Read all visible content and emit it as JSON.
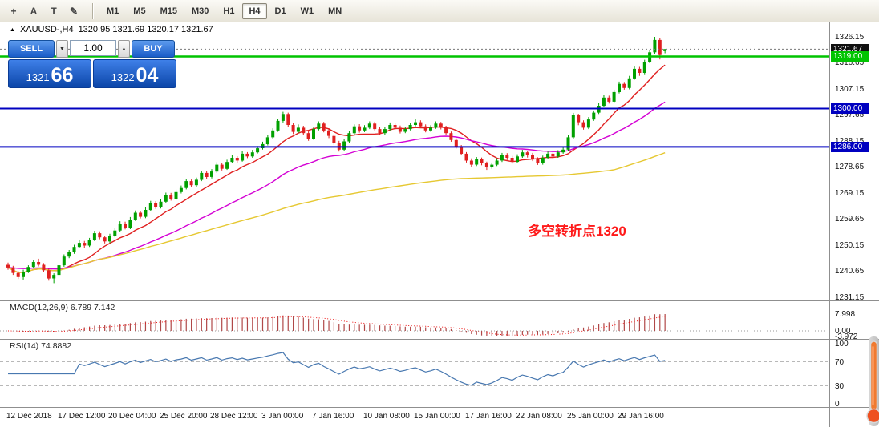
{
  "toolbar": {
    "icons": [
      {
        "name": "crosshair-icon",
        "glyph": "+"
      },
      {
        "name": "annotate-a-icon",
        "glyph": "A"
      },
      {
        "name": "text-tool-icon",
        "glyph": "T"
      },
      {
        "name": "draw-pencil-icon",
        "glyph": "✎"
      }
    ],
    "timeframes": [
      "M1",
      "M5",
      "M15",
      "M30",
      "H1",
      "H4",
      "D1",
      "W1",
      "MN"
    ],
    "active_timeframe": "H4"
  },
  "chart": {
    "header_icon": "▲",
    "symbol": "XAUUSD-,H4",
    "ohlc_text": "1320.95 1321.69 1320.17 1321.67"
  },
  "trade_panel": {
    "sell_label": "SELL",
    "buy_label": "BUY",
    "lot_value": "1.00",
    "spin_down": "▼",
    "spin_up": "▲",
    "sell_price": {
      "small": "1321",
      "big": "66"
    },
    "buy_price": {
      "small": "1322",
      "big": "04"
    }
  },
  "annotation": {
    "text": "多空转折点1320",
    "color": "#ff1a1a"
  },
  "levels": [
    {
      "label": "1321.67",
      "price": 1321.67,
      "color": "#111111",
      "type": "bid"
    },
    {
      "label": "1319.00",
      "price": 1319.0,
      "color": "#00c400",
      "type": "hline"
    },
    {
      "label": "1300.00",
      "price": 1300.0,
      "color": "#0000c0",
      "type": "hline"
    },
    {
      "label": "1286.00",
      "price": 1286.0,
      "color": "#0000c0",
      "type": "hline"
    }
  ],
  "price_axis": {
    "ticks": [
      "1326.15",
      "1316.65",
      "1307.15",
      "1297.65",
      "1288.15",
      "1278.65",
      "1269.15",
      "1259.65",
      "1250.15",
      "1240.65",
      "1231.15"
    ]
  },
  "indicators": {
    "macd": {
      "header": "MACD(12,26,9) 6.789 7.142",
      "params": {
        "fast": 12,
        "slow": 26,
        "signal": 9
      },
      "current_main": 6.789,
      "current_signal": 7.142,
      "axis": [
        "7.998",
        "0.00",
        "-3.972"
      ],
      "histogram_color": "#b04848",
      "signal_color": "#ee1111"
    },
    "rsi": {
      "header": "RSI(14) 74.8882",
      "period": 14,
      "current": 74.8882,
      "axis": [
        "100",
        "70",
        "30",
        "0"
      ],
      "level_lines": [
        70,
        30
      ],
      "color": "#4878b0"
    }
  },
  "chart_data": {
    "type": "candlestick",
    "symbol": "XAUUSD-",
    "timeframe": "H4",
    "ylim": [
      1231.15,
      1326.15
    ],
    "colors": {
      "up": "#00a000",
      "down": "#e02020"
    },
    "moving_averages": [
      {
        "name": "ma-fast",
        "period": 10,
        "method": "sma",
        "color": "#e02020"
      },
      {
        "name": "ma-mid",
        "period": 34,
        "method": "ema",
        "color": "#d400d4"
      },
      {
        "name": "ma-slow",
        "period": 120,
        "method": "sma",
        "color": "#e6c832"
      }
    ],
    "x_labels": [
      "12 Dec 2018",
      "17 Dec 12:00",
      "20 Dec 04:00",
      "25 Dec 20:00",
      "28 Dec 12:00",
      "3 Jan 00:00",
      "7 Jan 16:00",
      "10 Jan 08:00",
      "15 Jan 00:00",
      "17 Jan 16:00",
      "22 Jan 08:00",
      "25 Jan 00:00",
      "29 Jan 16:00"
    ],
    "ohlc": [
      [
        1243.0,
        1243.8,
        1241.2,
        1242.0
      ],
      [
        1242.0,
        1242.6,
        1239.3,
        1240.0
      ],
      [
        1240.0,
        1240.7,
        1237.8,
        1238.5
      ],
      [
        1238.5,
        1241.2,
        1237.6,
        1240.5
      ],
      [
        1240.5,
        1242.8,
        1240.0,
        1242.2
      ],
      [
        1242.2,
        1244.6,
        1241.6,
        1244.0
      ],
      [
        1244.0,
        1245.2,
        1242.4,
        1243.0
      ],
      [
        1243.0,
        1243.6,
        1240.2,
        1241.0
      ],
      [
        1241.0,
        1241.6,
        1237.2,
        1238.0
      ],
      [
        1238.0,
        1239.9,
        1236.3,
        1239.3
      ],
      [
        1239.3,
        1243.4,
        1238.8,
        1242.8
      ],
      [
        1242.8,
        1246.8,
        1242.3,
        1246.0
      ],
      [
        1246.0,
        1248.4,
        1245.4,
        1247.6
      ],
      [
        1247.6,
        1250.3,
        1247.0,
        1249.5
      ],
      [
        1249.5,
        1251.9,
        1249.0,
        1251.0
      ],
      [
        1251.0,
        1251.7,
        1249.2,
        1250.0
      ],
      [
        1250.0,
        1252.8,
        1249.5,
        1252.0
      ],
      [
        1252.0,
        1255.4,
        1251.6,
        1254.5
      ],
      [
        1254.5,
        1255.2,
        1252.3,
        1253.0
      ],
      [
        1253.0,
        1253.6,
        1250.8,
        1251.5
      ],
      [
        1251.5,
        1254.3,
        1251.0,
        1253.5
      ],
      [
        1253.5,
        1256.4,
        1253.0,
        1255.5
      ],
      [
        1255.5,
        1258.9,
        1255.0,
        1258.0
      ],
      [
        1258.0,
        1258.7,
        1255.9,
        1256.5
      ],
      [
        1256.5,
        1260.4,
        1256.0,
        1259.5
      ],
      [
        1259.5,
        1262.8,
        1259.0,
        1262.0
      ],
      [
        1262.0,
        1262.7,
        1259.9,
        1260.5
      ],
      [
        1260.5,
        1263.9,
        1260.0,
        1263.0
      ],
      [
        1263.0,
        1266.3,
        1262.5,
        1265.5
      ],
      [
        1265.5,
        1266.2,
        1263.4,
        1264.0
      ],
      [
        1264.0,
        1266.9,
        1263.5,
        1266.0
      ],
      [
        1266.0,
        1269.3,
        1265.5,
        1268.5
      ],
      [
        1268.5,
        1269.2,
        1266.4,
        1267.0
      ],
      [
        1267.0,
        1270.4,
        1266.5,
        1269.5
      ],
      [
        1269.5,
        1271.9,
        1269.0,
        1271.0
      ],
      [
        1271.0,
        1274.4,
        1270.5,
        1273.5
      ],
      [
        1273.5,
        1274.1,
        1271.4,
        1272.0
      ],
      [
        1272.0,
        1274.8,
        1271.5,
        1274.0
      ],
      [
        1274.0,
        1277.3,
        1273.5,
        1276.5
      ],
      [
        1276.5,
        1277.2,
        1274.4,
        1275.0
      ],
      [
        1275.0,
        1277.9,
        1274.5,
        1277.0
      ],
      [
        1277.0,
        1280.4,
        1276.5,
        1279.5
      ],
      [
        1279.5,
        1280.1,
        1277.4,
        1278.0
      ],
      [
        1278.0,
        1281.3,
        1277.6,
        1280.5
      ],
      [
        1280.5,
        1282.9,
        1280.0,
        1282.0
      ],
      [
        1282.0,
        1282.6,
        1280.2,
        1281.0
      ],
      [
        1281.0,
        1284.4,
        1280.6,
        1283.5
      ],
      [
        1283.5,
        1284.1,
        1281.9,
        1282.5
      ],
      [
        1282.5,
        1284.9,
        1282.0,
        1284.0
      ],
      [
        1284.0,
        1286.3,
        1283.6,
        1285.5
      ],
      [
        1285.5,
        1287.9,
        1285.0,
        1287.0
      ],
      [
        1287.0,
        1290.4,
        1286.5,
        1289.5
      ],
      [
        1289.5,
        1292.8,
        1289.0,
        1292.0
      ],
      [
        1292.0,
        1296.3,
        1291.5,
        1295.5
      ],
      [
        1295.5,
        1298.8,
        1294.9,
        1298.0
      ],
      [
        1298.0,
        1298.5,
        1293.2,
        1294.0
      ],
      [
        1294.0,
        1294.6,
        1290.7,
        1291.5
      ],
      [
        1291.5,
        1294.2,
        1291.0,
        1293.0
      ],
      [
        1293.0,
        1293.7,
        1290.3,
        1291.0
      ],
      [
        1291.0,
        1291.8,
        1288.2,
        1289.0
      ],
      [
        1289.0,
        1293.3,
        1288.6,
        1292.5
      ],
      [
        1292.5,
        1295.3,
        1292.0,
        1294.5
      ],
      [
        1294.5,
        1295.1,
        1291.3,
        1292.0
      ],
      [
        1292.0,
        1292.8,
        1289.2,
        1290.0
      ],
      [
        1290.0,
        1290.6,
        1286.8,
        1287.5
      ],
      [
        1287.5,
        1288.2,
        1284.3,
        1285.0
      ],
      [
        1285.0,
        1288.8,
        1284.5,
        1288.0
      ],
      [
        1288.0,
        1291.9,
        1287.5,
        1291.0
      ],
      [
        1291.0,
        1294.2,
        1290.5,
        1293.5
      ],
      [
        1293.5,
        1294.3,
        1291.2,
        1292.0
      ],
      [
        1292.0,
        1293.9,
        1291.4,
        1293.0
      ],
      [
        1293.0,
        1295.3,
        1292.5,
        1294.5
      ],
      [
        1294.5,
        1295.2,
        1292.0,
        1292.5
      ],
      [
        1292.5,
        1293.2,
        1290.3,
        1291.0
      ],
      [
        1291.0,
        1293.4,
        1290.5,
        1292.5
      ],
      [
        1292.5,
        1294.9,
        1292.0,
        1294.0
      ],
      [
        1294.0,
        1294.7,
        1292.2,
        1293.0
      ],
      [
        1293.0,
        1293.8,
        1290.9,
        1291.5
      ],
      [
        1291.5,
        1293.3,
        1291.0,
        1292.5
      ],
      [
        1292.5,
        1294.8,
        1292.0,
        1294.0
      ],
      [
        1294.0,
        1296.2,
        1293.5,
        1295.0
      ],
      [
        1295.0,
        1295.7,
        1292.9,
        1293.5
      ],
      [
        1293.5,
        1294.2,
        1291.3,
        1292.0
      ],
      [
        1292.0,
        1293.9,
        1291.5,
        1293.0
      ],
      [
        1293.0,
        1295.3,
        1292.6,
        1294.5
      ],
      [
        1294.5,
        1295.1,
        1292.4,
        1293.0
      ],
      [
        1293.0,
        1293.7,
        1290.4,
        1291.0
      ],
      [
        1291.0,
        1291.6,
        1287.9,
        1288.5
      ],
      [
        1288.5,
        1289.1,
        1285.4,
        1286.0
      ],
      [
        1286.0,
        1286.7,
        1282.9,
        1283.5
      ],
      [
        1283.5,
        1284.1,
        1280.3,
        1281.0
      ],
      [
        1281.0,
        1281.8,
        1278.7,
        1279.5
      ],
      [
        1279.5,
        1282.3,
        1279.0,
        1281.5
      ],
      [
        1281.5,
        1282.1,
        1279.3,
        1280.0
      ],
      [
        1280.0,
        1280.6,
        1277.6,
        1278.5
      ],
      [
        1278.5,
        1280.3,
        1278.0,
        1279.5
      ],
      [
        1279.5,
        1281.8,
        1279.0,
        1281.0
      ],
      [
        1281.0,
        1283.8,
        1280.5,
        1283.0
      ],
      [
        1283.0,
        1283.7,
        1281.2,
        1282.0
      ],
      [
        1282.0,
        1282.7,
        1279.9,
        1280.5
      ],
      [
        1280.5,
        1283.3,
        1280.0,
        1282.5
      ],
      [
        1282.5,
        1284.9,
        1282.0,
        1284.0
      ],
      [
        1284.0,
        1284.6,
        1282.1,
        1283.0
      ],
      [
        1283.0,
        1283.8,
        1280.8,
        1281.5
      ],
      [
        1281.5,
        1282.2,
        1279.4,
        1280.0
      ],
      [
        1280.0,
        1282.8,
        1279.5,
        1282.0
      ],
      [
        1282.0,
        1284.3,
        1281.5,
        1283.5
      ],
      [
        1283.5,
        1284.2,
        1281.8,
        1282.5
      ],
      [
        1282.5,
        1284.8,
        1282.0,
        1284.0
      ],
      [
        1284.0,
        1285.9,
        1283.5,
        1285.0
      ],
      [
        1285.0,
        1290.3,
        1284.6,
        1289.5
      ],
      [
        1289.5,
        1298.4,
        1289.0,
        1297.5
      ],
      [
        1297.5,
        1298.1,
        1293.9,
        1295.0
      ],
      [
        1295.0,
        1295.7,
        1292.3,
        1293.0
      ],
      [
        1293.0,
        1296.9,
        1292.5,
        1296.0
      ],
      [
        1296.0,
        1299.3,
        1295.5,
        1298.5
      ],
      [
        1298.5,
        1301.9,
        1298.0,
        1301.0
      ],
      [
        1301.0,
        1304.8,
        1300.5,
        1304.0
      ],
      [
        1304.0,
        1304.7,
        1301.8,
        1302.5
      ],
      [
        1302.5,
        1306.9,
        1302.0,
        1306.0
      ],
      [
        1306.0,
        1309.8,
        1305.5,
        1309.0
      ],
      [
        1309.0,
        1309.7,
        1306.9,
        1307.5
      ],
      [
        1307.5,
        1311.9,
        1307.0,
        1311.0
      ],
      [
        1311.0,
        1315.3,
        1310.5,
        1314.5
      ],
      [
        1314.5,
        1315.2,
        1311.9,
        1313.0
      ],
      [
        1313.0,
        1317.8,
        1312.5,
        1317.0
      ],
      [
        1317.0,
        1321.3,
        1316.5,
        1320.5
      ],
      [
        1320.5,
        1326.15,
        1320.0,
        1325.0
      ],
      [
        1325.0,
        1325.6,
        1317.9,
        1319.5
      ],
      [
        1320.95,
        1321.69,
        1320.17,
        1321.67
      ]
    ]
  }
}
